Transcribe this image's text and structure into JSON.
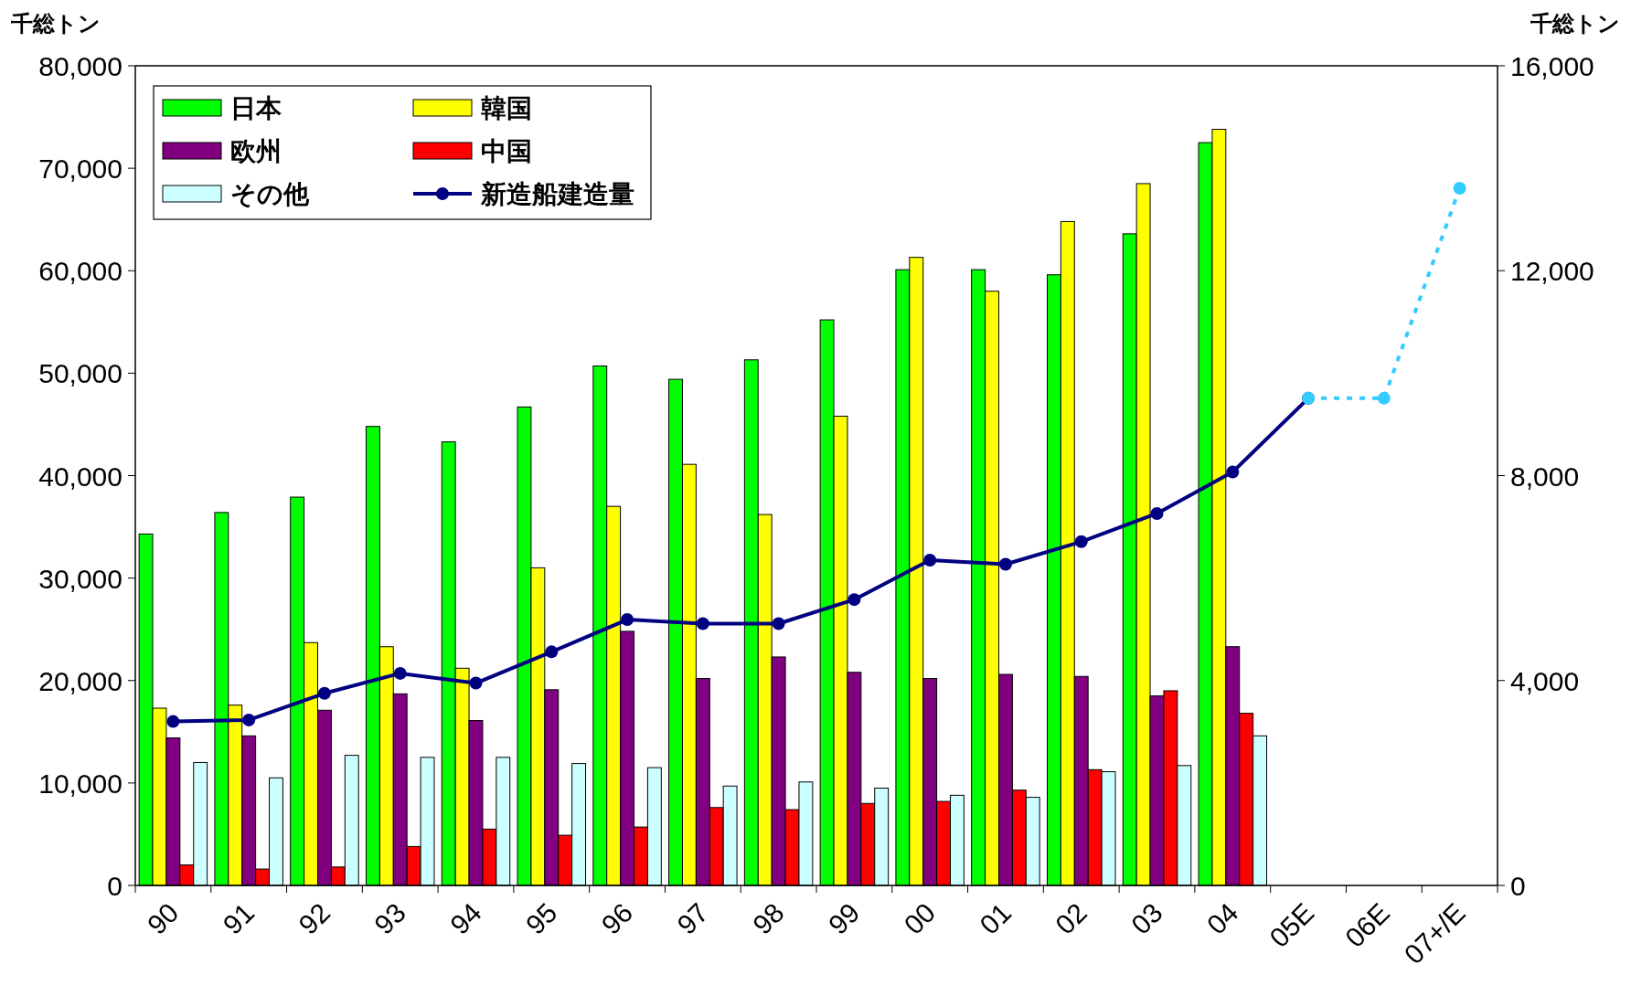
{
  "chart_data": {
    "type": "bar",
    "ylabel": "千総トン",
    "y2label": "千総トン",
    "categories": [
      "90",
      "91",
      "92",
      "93",
      "94",
      "95",
      "96",
      "97",
      "98",
      "99",
      "00",
      "01",
      "02",
      "03",
      "04",
      "05E",
      "06E",
      "07+/E"
    ],
    "ylim": [
      0,
      80000
    ],
    "yticks": [
      0,
      {
        "value": 10000,
        "label": "10,000"
      },
      {
        "value": 20000,
        "label": "20,000"
      },
      {
        "value": 30000,
        "label": "30,000"
      },
      {
        "value": 40000,
        "label": "40,000"
      },
      {
        "value": 50000,
        "label": "50,000"
      },
      {
        "value": 60000,
        "label": "60,000"
      },
      {
        "value": 70000,
        "label": "70,000"
      },
      {
        "value": 80000,
        "label": "80,000"
      }
    ],
    "y2lim": [
      0,
      16000
    ],
    "y2ticks": [
      0,
      {
        "value": 4000,
        "label": "4,000"
      },
      {
        "value": 8000,
        "label": "8,000"
      },
      {
        "value": 12000,
        "label": "12,000"
      },
      {
        "value": 16000,
        "label": "16,000"
      }
    ],
    "legend": "top left",
    "grid": false,
    "series": [
      {
        "name": "日本",
        "color": "#00ff00",
        "values": [
          34300,
          36400,
          37900,
          44800,
          43300,
          46700,
          50700,
          49400,
          51300,
          55200,
          60100,
          60100,
          59600,
          63600,
          72500,
          null,
          null,
          null
        ]
      },
      {
        "name": "韓国",
        "color": "#ffff00",
        "values": [
          17300,
          17600,
          23700,
          23300,
          21200,
          31000,
          37000,
          41100,
          36200,
          45800,
          61300,
          58000,
          64800,
          68500,
          73800,
          null,
          null,
          null
        ]
      },
      {
        "name": "欧州",
        "color": "#800080",
        "values": [
          14400,
          14600,
          17100,
          18700,
          16100,
          19100,
          24800,
          20200,
          22300,
          20800,
          20200,
          20600,
          20400,
          18500,
          23300,
          null,
          null,
          null
        ]
      },
      {
        "name": "中国",
        "color": "#ff0000",
        "values": [
          2000,
          1600,
          1800,
          3800,
          5500,
          4900,
          5700,
          7600,
          7400,
          8000,
          8200,
          9300,
          11300,
          19000,
          16800,
          null,
          null,
          null
        ]
      },
      {
        "name": "その他",
        "color": "#ccffff",
        "values": [
          12000,
          10500,
          12700,
          12500,
          12500,
          11900,
          11500,
          9700,
          10100,
          9500,
          8800,
          8600,
          11100,
          11700,
          14600,
          null,
          null,
          null
        ]
      },
      {
        "name": "新造船建造量",
        "type": "line",
        "axis": "y2",
        "color": "#000080",
        "marker": "circle",
        "line_style": "solid",
        "values": [
          3200,
          3230,
          3750,
          4140,
          3950,
          4560,
          5190,
          5110,
          5110,
          5580,
          6350,
          6270,
          6710,
          7260,
          8070,
          9510,
          null,
          null
        ]
      },
      {
        "type": "line",
        "axis": "y2",
        "color": "#33ccff",
        "marker": "circle",
        "line_style": "dotted",
        "values": [
          null,
          null,
          null,
          null,
          null,
          null,
          null,
          null,
          null,
          null,
          null,
          null,
          null,
          null,
          null,
          9510,
          9510,
          13610
        ]
      }
    ]
  }
}
